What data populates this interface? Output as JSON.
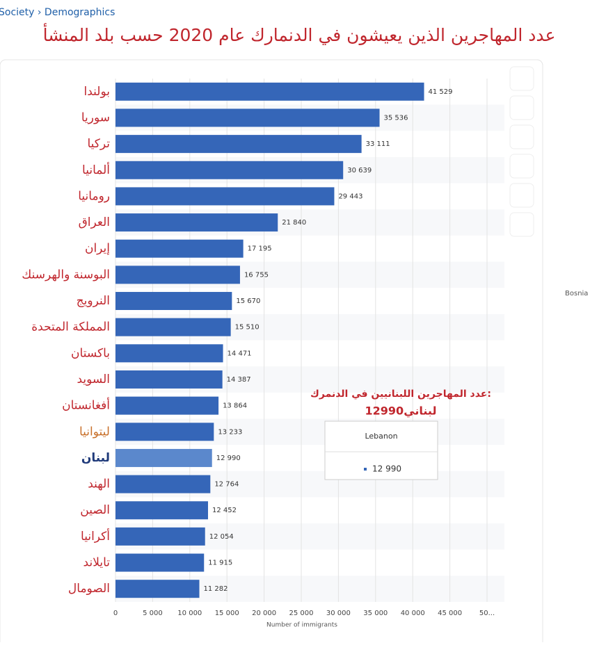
{
  "breadcrumb": "Society › Demographics",
  "chart_data": {
    "type": "hbar",
    "title": "عدد المهاجرين الذين يعيشون في الدنمارك عام 2020 حسب بلد المنشأ",
    "categories": [
      "بولندا",
      "سوريا",
      "تركيا",
      "ألمانيا",
      "رومانيا",
      "العراق",
      "إيران",
      "البوسنة والهرسنك",
      "النرويج",
      "المملكة المتحدة",
      "باكستان",
      "السويد",
      "أفغانستان",
      "ليتوانيا",
      "لبنان",
      "الهند",
      "الصين",
      "أكرانيا",
      "تايلاند",
      "الصومال"
    ],
    "values": [
      41529,
      35536,
      33111,
      30639,
      29443,
      21840,
      17195,
      16755,
      15670,
      15510,
      14471,
      14387,
      13864,
      13233,
      12990,
      12764,
      12452,
      12054,
      11915,
      11282
    ],
    "value_labels": [
      "41 529",
      "35 536",
      "33 111",
      "30 639",
      "29 443",
      "21 840",
      "17 195",
      "16 755",
      "15 670",
      "15 510",
      "14 471",
      "14 387",
      "13 864",
      "13 233",
      "12 990",
      "12 764",
      "12 452",
      "12 054",
      "11 915",
      "11 282"
    ],
    "color": "#3566b8",
    "highlight_index": 14,
    "highlight_color": "#5b88cc",
    "label_colors": [
      "#c0262d",
      "#c0262d",
      "#c0262d",
      "#c0262d",
      "#c0262d",
      "#c0262d",
      "#c0262d",
      "#c0262d",
      "#c0262d",
      "#c0262d",
      "#c0262d",
      "#c0262d",
      "#c0262d",
      "#c8702a",
      "#1f3a7a",
      "#c0262d",
      "#c0262d",
      "#c0262d",
      "#c0262d",
      "#c0262d"
    ],
    "xlim": [
      0,
      50000
    ],
    "xticks": [
      0,
      {
        "value": 5000,
        "label": "5 000"
      },
      {
        "value": 10000,
        "label": "10 000"
      },
      {
        "value": 15000,
        "label": "15 000"
      },
      {
        "value": 20000,
        "label": "20 000"
      },
      {
        "value": 25000,
        "label": "25 000"
      },
      {
        "value": 30000,
        "label": "30 000"
      },
      {
        "value": 35000,
        "label": "35 000"
      },
      {
        "value": 40000,
        "label": "40 000"
      },
      {
        "value": 45000,
        "label": "45 000"
      },
      {
        "value": 50000,
        "label": "50..."
      }
    ],
    "xlabel": "Number of immigrants",
    "grid": true,
    "annotations": [
      "عدد المهاجرين اللبنانيين في الدنمرك:",
      "لبناني12990"
    ],
    "tooltip": {
      "title": "Lebanon"
    },
    "side_label": "Bosnia"
  }
}
